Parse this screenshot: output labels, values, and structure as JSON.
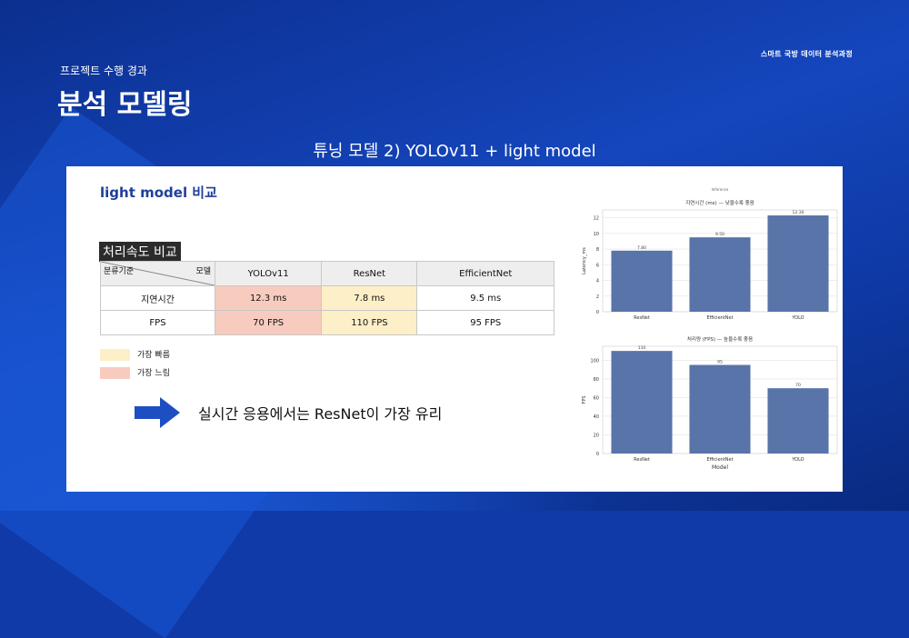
{
  "header": {
    "top_right": "스마트 국방 데이터 분석과정",
    "subtitle": "프로젝트 수행 경과",
    "title": "분석 모델링",
    "slide_heading": "튜닝 모델 2) YOLOv11 + light model"
  },
  "panel": {
    "title": "light model 비교",
    "table": {
      "title": "처리속도 비교",
      "corner_row_label": "분류기준",
      "corner_col_label": "모델",
      "columns": [
        "YOLOv11",
        "ResNet",
        "EfficientNet"
      ],
      "rows": [
        {
          "label": "지연시간",
          "cells": [
            "12.3 ms",
            "7.8 ms",
            "9.5 ms"
          ]
        },
        {
          "label": "FPS",
          "cells": [
            "70 FPS",
            "110 FPS",
            "95 FPS"
          ]
        }
      ]
    },
    "legend": [
      {
        "label": "가장 빠름",
        "color": "#fdefc7"
      },
      {
        "label": "가장 느림",
        "color": "#f8cbbf"
      }
    ],
    "conclusion": "실시간 응용에서는 ResNet이 가장 유리",
    "colors": {
      "bar": "#5874a8",
      "arrow": "#1e4fc2",
      "slow": "#f8cbbf",
      "fast": "#fdefc7"
    }
  },
  "chart_data": [
    {
      "type": "bar",
      "suptitle": "Inference",
      "title": "지연시간 (ms) — 낮을수록 좋음",
      "categories": [
        "ResNet",
        "EfficientNet",
        "YOLO"
      ],
      "values": [
        7.8,
        9.5,
        12.3
      ],
      "labels": [
        "7.80",
        "9.50",
        "12.30"
      ],
      "xlabel": "",
      "ylabel": "Latency_ms",
      "ylim": [
        0,
        13
      ],
      "yticks": [
        0,
        2,
        4,
        6,
        8,
        10,
        12
      ],
      "grid": true
    },
    {
      "type": "bar",
      "title": "처리량 (FPS) — 높을수록 좋음",
      "categories": [
        "ResNet",
        "EfficientNet",
        "YOLO"
      ],
      "values": [
        110,
        95,
        70
      ],
      "labels": [
        "110",
        "95",
        "70"
      ],
      "xlabel": "Model",
      "ylabel": "FPS",
      "ylim": [
        0,
        115
      ],
      "yticks": [
        0,
        20,
        40,
        60,
        80,
        100
      ],
      "grid": true
    }
  ]
}
